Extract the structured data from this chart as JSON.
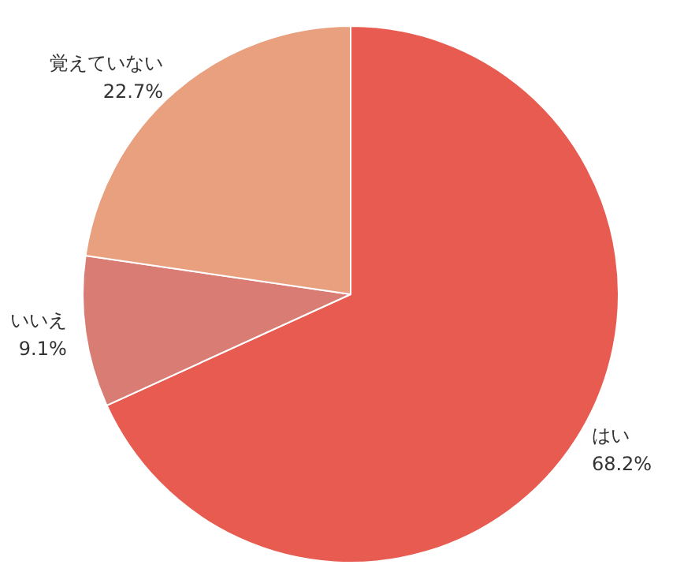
{
  "chart_data": {
    "type": "pie",
    "categories": [
      "はい",
      "いいえ",
      "覚えていない"
    ],
    "values": [
      68.2,
      9.1,
      22.7
    ],
    "colors": [
      "#e85b50",
      "#d97d74",
      "#e8a07f"
    ],
    "value_labels": [
      "68.2%",
      "9.1%",
      "22.7%"
    ]
  }
}
